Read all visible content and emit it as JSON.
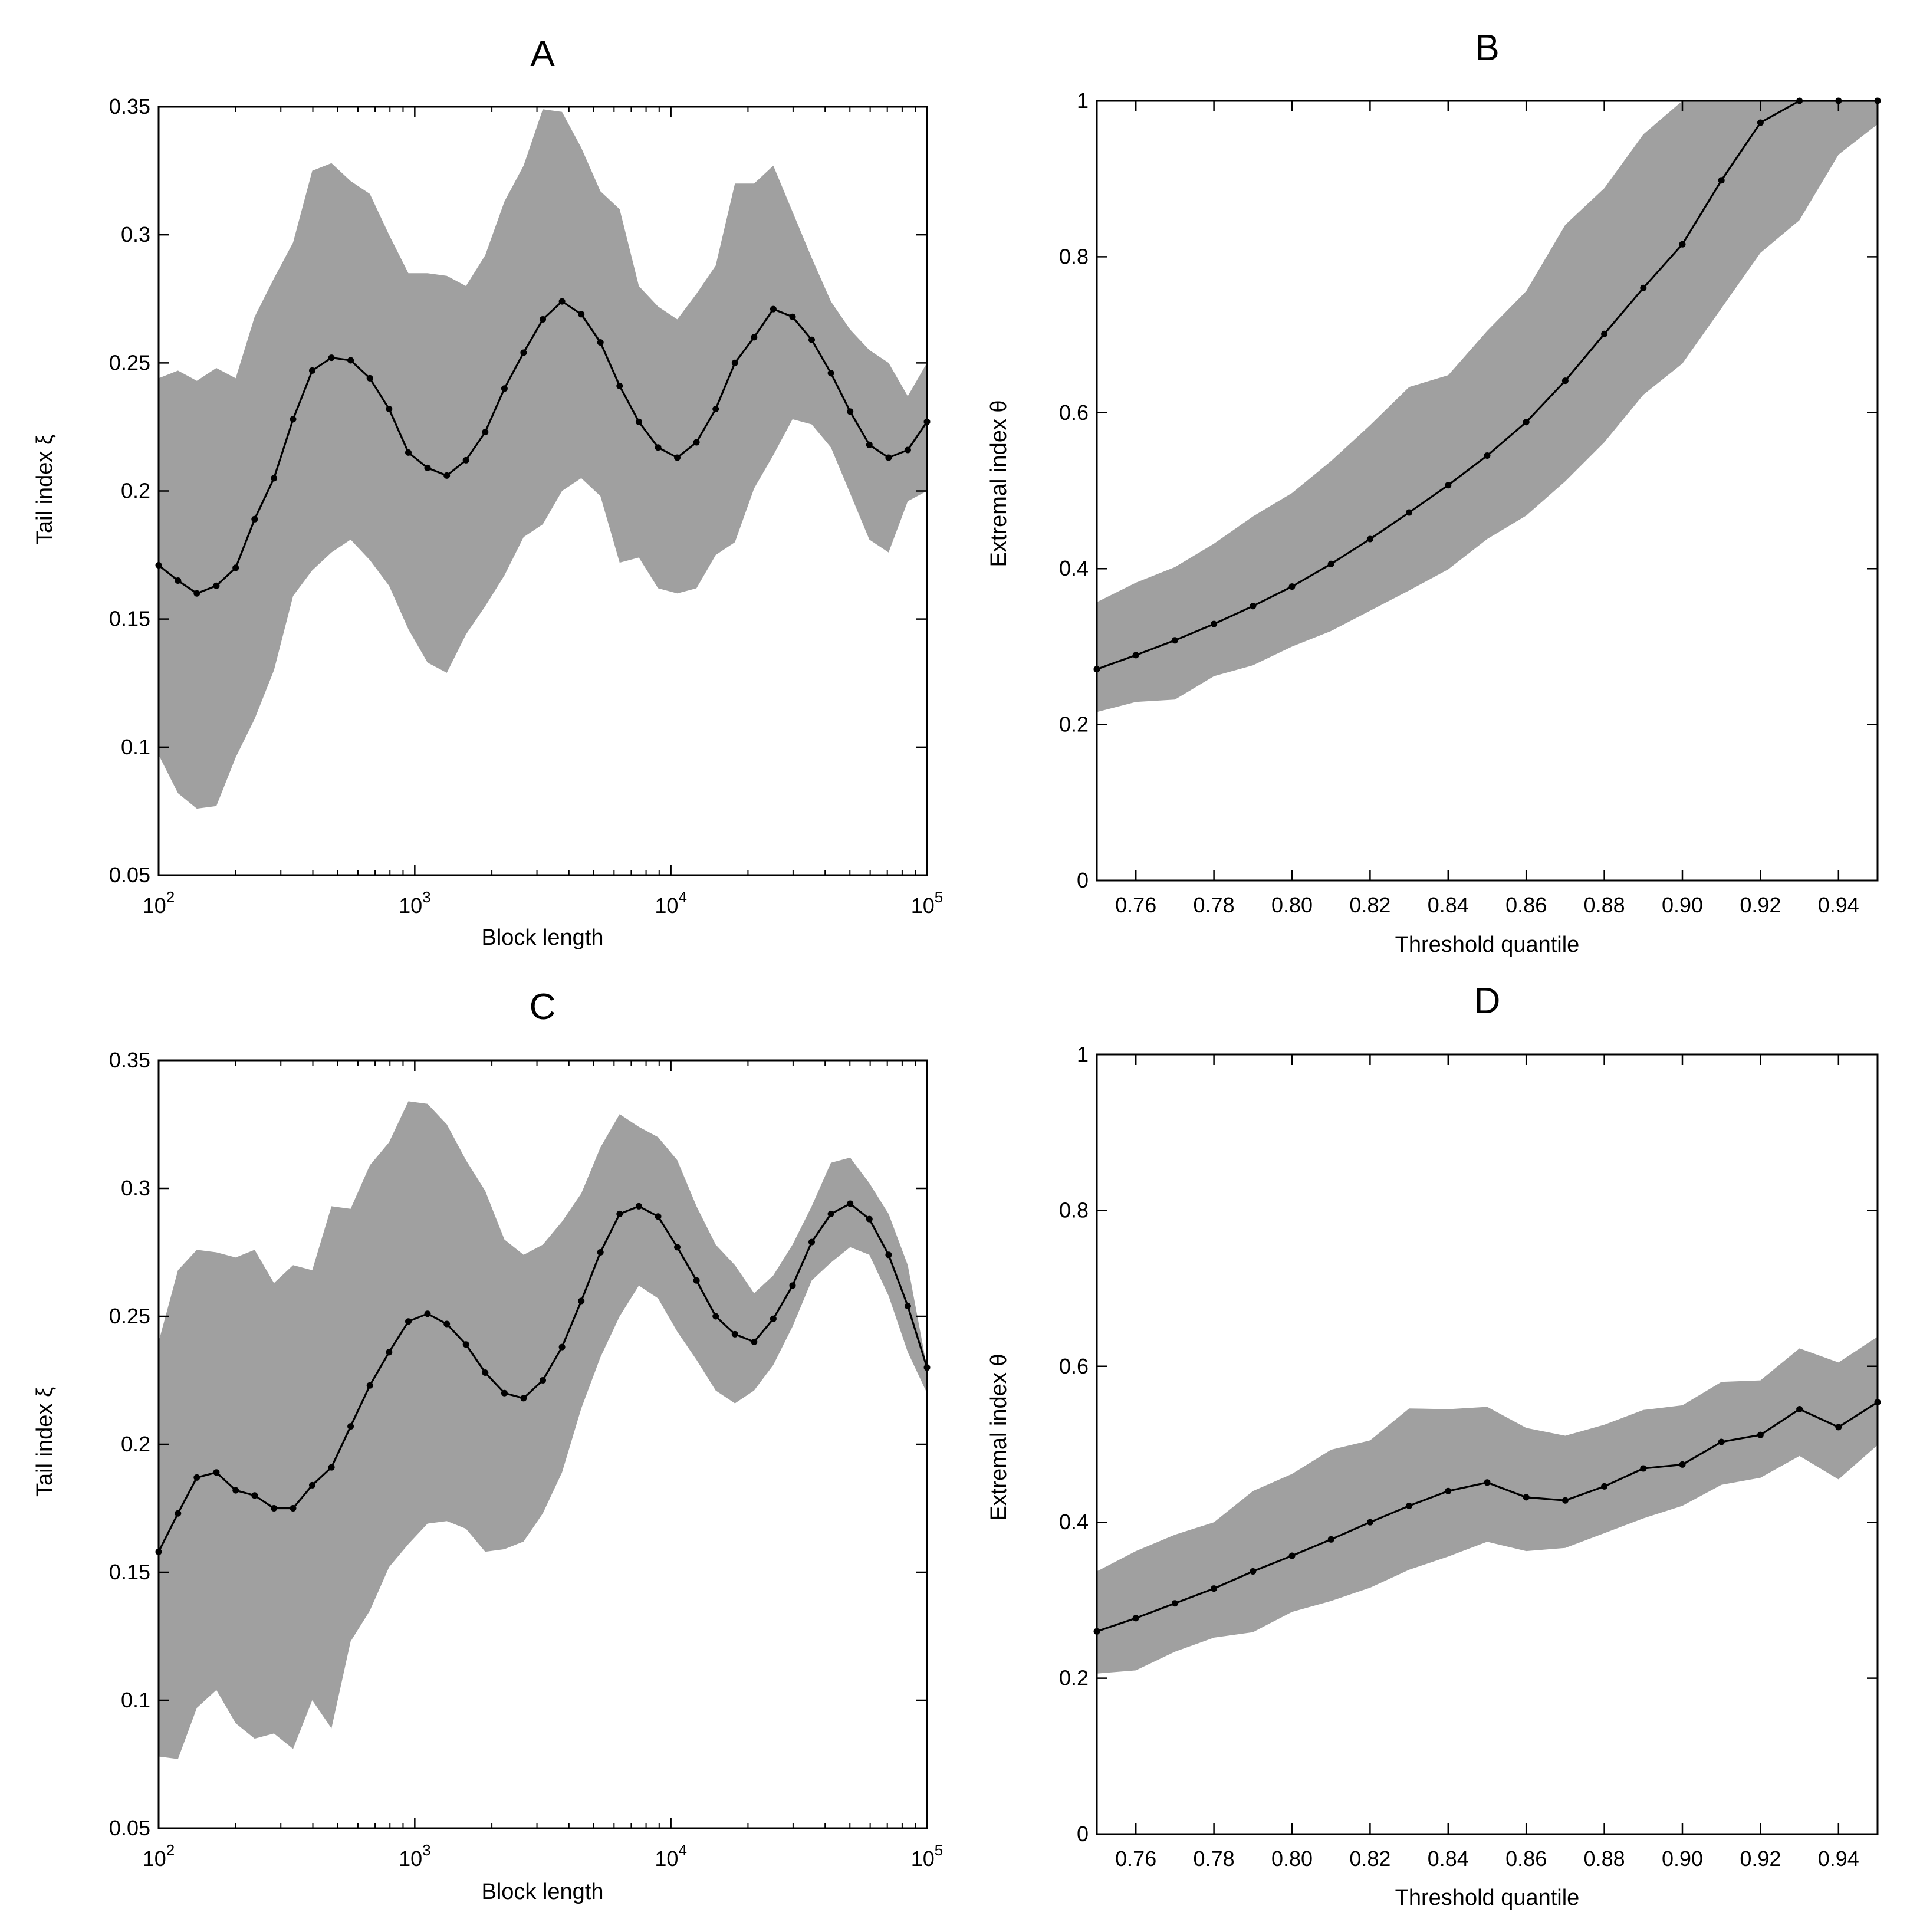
{
  "figure": {
    "style": {
      "band_color": "#a0a0a0",
      "line_color": "#000000"
    }
  },
  "chart_data": [
    {
      "id": "A",
      "type": "line",
      "title": "A",
      "xlabel": "Block length",
      "ylabel": "Tail index ξ",
      "xscale": "log",
      "xlim": [
        100,
        100000
      ],
      "ylim": [
        0.05,
        0.35
      ],
      "xticks": [
        100,
        1000,
        10000,
        100000
      ],
      "xtick_labels": [
        {
          "base": "10",
          "exp": "2"
        },
        {
          "base": "10",
          "exp": "3"
        },
        {
          "base": "10",
          "exp": "4"
        },
        {
          "base": "10",
          "exp": "5"
        }
      ],
      "yticks": [
        0.05,
        0.1,
        0.15,
        0.2,
        0.25,
        0.3,
        0.35
      ],
      "ytick_labels": [
        "0.05",
        "0.1",
        "0.15",
        "0.2",
        "0.25",
        "0.3",
        "0.35"
      ],
      "x": [
        100,
        119,
        141,
        168,
        200,
        237,
        282,
        335,
        398,
        473,
        562,
        668,
        794,
        944,
        1122,
        1334,
        1585,
        1884,
        2239,
        2661,
        3162,
        3758,
        4467,
        5309,
        6310,
        7499,
        8913,
        10593,
        12589,
        14962,
        17783,
        21135,
        25119,
        29854,
        35481,
        42170,
        50119,
        59566,
        70795,
        84140,
        100000
      ],
      "mean": [
        0.171,
        0.165,
        0.16,
        0.163,
        0.17,
        0.189,
        0.205,
        0.228,
        0.247,
        0.252,
        0.251,
        0.244,
        0.232,
        0.215,
        0.209,
        0.206,
        0.212,
        0.223,
        0.24,
        0.254,
        0.267,
        0.274,
        0.269,
        0.258,
        0.241,
        0.227,
        0.217,
        0.213,
        0.219,
        0.232,
        0.25,
        0.26,
        0.271,
        0.268,
        0.259,
        0.246,
        0.231,
        0.218,
        0.213,
        0.216,
        0.227
      ],
      "upper": [
        0.244,
        0.247,
        0.243,
        0.248,
        0.244,
        0.268,
        0.283,
        0.297,
        0.325,
        0.328,
        0.321,
        0.316,
        0.3,
        0.285,
        0.285,
        0.284,
        0.28,
        0.292,
        0.313,
        0.327,
        0.349,
        0.348,
        0.334,
        0.317,
        0.31,
        0.28,
        0.272,
        0.267,
        0.277,
        0.288,
        0.32,
        0.32,
        0.327,
        0.309,
        0.291,
        0.274,
        0.263,
        0.255,
        0.25,
        0.237,
        0.25
      ],
      "lower": [
        0.097,
        0.082,
        0.076,
        0.077,
        0.096,
        0.111,
        0.13,
        0.159,
        0.169,
        0.176,
        0.181,
        0.173,
        0.163,
        0.146,
        0.133,
        0.129,
        0.144,
        0.155,
        0.167,
        0.182,
        0.187,
        0.2,
        0.205,
        0.198,
        0.172,
        0.174,
        0.162,
        0.16,
        0.162,
        0.175,
        0.18,
        0.201,
        0.214,
        0.228,
        0.226,
        0.217,
        0.199,
        0.181,
        0.176,
        0.196,
        0.2
      ]
    },
    {
      "id": "B",
      "type": "line",
      "title": "B",
      "xlabel": "Threshold quantile",
      "ylabel": "Extremal index θ",
      "xscale": "linear",
      "xlim": [
        0.75,
        0.95
      ],
      "ylim": [
        0,
        1
      ],
      "xticks": [
        0.76,
        0.78,
        0.8,
        0.82,
        0.84,
        0.86,
        0.88,
        0.9,
        0.92,
        0.94
      ],
      "xtick_labels": [
        "0.76",
        "0.78",
        "0.80",
        "0.82",
        "0.84",
        "0.86",
        "0.88",
        "0.90",
        "0.92",
        "0.94"
      ],
      "yticks": [
        0,
        0.2,
        0.4,
        0.6,
        0.8,
        1
      ],
      "ytick_labels": [
        "0",
        "0.2",
        "0.4",
        "0.6",
        "0.8",
        "1"
      ],
      "x": [
        0.75,
        0.76,
        0.77,
        0.78,
        0.79,
        0.8,
        0.81,
        0.82,
        0.83,
        0.84,
        0.85,
        0.86,
        0.87,
        0.88,
        0.89,
        0.9,
        0.91,
        0.92,
        0.93,
        0.94,
        0.95
      ],
      "mean": [
        0.271,
        0.289,
        0.308,
        0.329,
        0.352,
        0.377,
        0.406,
        0.438,
        0.472,
        0.507,
        0.545,
        0.588,
        0.641,
        0.701,
        0.76,
        0.816,
        0.898,
        0.972,
        1.0,
        1.0,
        1.0
      ],
      "upper": [
        0.357,
        0.382,
        0.402,
        0.432,
        0.467,
        0.497,
        0.538,
        0.584,
        0.633,
        0.648,
        0.705,
        0.756,
        0.841,
        0.888,
        0.957,
        1.0,
        1.0,
        1.0,
        1.0,
        1.0,
        1.0
      ],
      "lower": [
        0.216,
        0.229,
        0.232,
        0.262,
        0.276,
        0.3,
        0.32,
        0.346,
        0.372,
        0.399,
        0.438,
        0.468,
        0.512,
        0.562,
        0.623,
        0.663,
        0.734,
        0.805,
        0.847,
        0.931,
        0.97
      ]
    },
    {
      "id": "C",
      "type": "line",
      "title": "C",
      "xlabel": "Block length",
      "ylabel": "Tail index ξ",
      "xscale": "log",
      "xlim": [
        100,
        100000
      ],
      "ylim": [
        0.05,
        0.35
      ],
      "xticks": [
        100,
        1000,
        10000,
        100000
      ],
      "xtick_labels": [
        {
          "base": "10",
          "exp": "2"
        },
        {
          "base": "10",
          "exp": "3"
        },
        {
          "base": "10",
          "exp": "4"
        },
        {
          "base": "10",
          "exp": "5"
        }
      ],
      "yticks": [
        0.05,
        0.1,
        0.15,
        0.2,
        0.25,
        0.3,
        0.35
      ],
      "ytick_labels": [
        "0.05",
        "0.1",
        "0.15",
        "0.2",
        "0.25",
        "0.3",
        "0.35"
      ],
      "x": [
        100,
        119,
        141,
        168,
        200,
        237,
        282,
        335,
        398,
        473,
        562,
        668,
        794,
        944,
        1122,
        1334,
        1585,
        1884,
        2239,
        2661,
        3162,
        3758,
        4467,
        5309,
        6310,
        7499,
        8913,
        10593,
        12589,
        14962,
        17783,
        21135,
        25119,
        29854,
        35481,
        42170,
        50119,
        59566,
        70795,
        84140,
        100000
      ],
      "mean": [
        0.158,
        0.173,
        0.187,
        0.189,
        0.182,
        0.18,
        0.175,
        0.175,
        0.184,
        0.191,
        0.207,
        0.223,
        0.236,
        0.248,
        0.251,
        0.247,
        0.239,
        0.228,
        0.22,
        0.218,
        0.225,
        0.238,
        0.256,
        0.275,
        0.29,
        0.293,
        0.289,
        0.277,
        0.264,
        0.25,
        0.243,
        0.24,
        0.249,
        0.262,
        0.279,
        0.29,
        0.294,
        0.288,
        0.274,
        0.254,
        0.23
      ],
      "upper": [
        0.24,
        0.268,
        0.276,
        0.275,
        0.273,
        0.276,
        0.263,
        0.27,
        0.268,
        0.293,
        0.292,
        0.309,
        0.318,
        0.334,
        0.333,
        0.325,
        0.311,
        0.299,
        0.28,
        0.274,
        0.278,
        0.287,
        0.298,
        0.316,
        0.329,
        0.324,
        0.32,
        0.311,
        0.293,
        0.278,
        0.27,
        0.259,
        0.266,
        0.278,
        0.293,
        0.31,
        0.312,
        0.302,
        0.29,
        0.27,
        0.23
      ],
      "lower": [
        0.078,
        0.077,
        0.097,
        0.104,
        0.091,
        0.085,
        0.087,
        0.081,
        0.1,
        0.089,
        0.123,
        0.135,
        0.152,
        0.161,
        0.169,
        0.17,
        0.167,
        0.158,
        0.159,
        0.162,
        0.173,
        0.189,
        0.214,
        0.234,
        0.25,
        0.262,
        0.257,
        0.244,
        0.233,
        0.221,
        0.216,
        0.221,
        0.231,
        0.246,
        0.264,
        0.271,
        0.277,
        0.274,
        0.258,
        0.236,
        0.22
      ]
    },
    {
      "id": "D",
      "type": "line",
      "title": "D",
      "xlabel": "Threshold quantile",
      "ylabel": "Extremal index θ",
      "xscale": "linear",
      "xlim": [
        0.75,
        0.95
      ],
      "ylim": [
        0,
        1
      ],
      "xticks": [
        0.76,
        0.78,
        0.8,
        0.82,
        0.84,
        0.86,
        0.88,
        0.9,
        0.92,
        0.94
      ],
      "xtick_labels": [
        "0.76",
        "0.78",
        "0.80",
        "0.82",
        "0.84",
        "0.86",
        "0.88",
        "0.90",
        "0.92",
        "0.94"
      ],
      "yticks": [
        0,
        0.2,
        0.4,
        0.6,
        0.8,
        1
      ],
      "ytick_labels": [
        "0",
        "0.2",
        "0.4",
        "0.6",
        "0.8",
        "1"
      ],
      "x": [
        0.75,
        0.76,
        0.77,
        0.78,
        0.79,
        0.8,
        0.81,
        0.82,
        0.83,
        0.84,
        0.85,
        0.86,
        0.87,
        0.88,
        0.89,
        0.9,
        0.91,
        0.92,
        0.93,
        0.94,
        0.95
      ],
      "mean": [
        0.26,
        0.277,
        0.296,
        0.315,
        0.337,
        0.357,
        0.378,
        0.4,
        0.421,
        0.44,
        0.451,
        0.432,
        0.428,
        0.446,
        0.469,
        0.474,
        0.503,
        0.512,
        0.545,
        0.522,
        0.554
      ],
      "upper": [
        0.337,
        0.363,
        0.384,
        0.4,
        0.44,
        0.462,
        0.493,
        0.505,
        0.546,
        0.545,
        0.548,
        0.521,
        0.511,
        0.525,
        0.544,
        0.55,
        0.58,
        0.582,
        0.623,
        0.605,
        0.638
      ],
      "lower": [
        0.206,
        0.21,
        0.234,
        0.252,
        0.259,
        0.285,
        0.299,
        0.316,
        0.339,
        0.356,
        0.375,
        0.363,
        0.367,
        0.386,
        0.405,
        0.421,
        0.448,
        0.457,
        0.485,
        0.455,
        0.499
      ]
    }
  ]
}
